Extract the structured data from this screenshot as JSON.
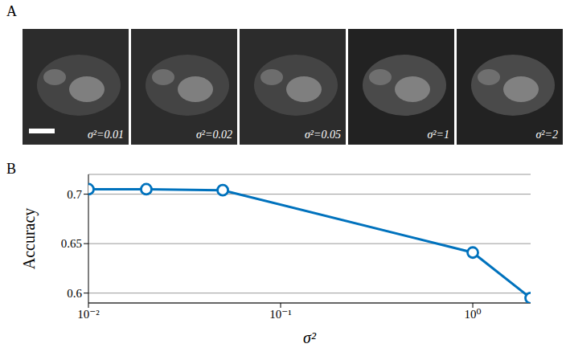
{
  "panel_a": {
    "label": "A",
    "images": [
      {
        "label": "σ²=0.01"
      },
      {
        "label": "σ²=0.02"
      },
      {
        "label": "σ²=0.05"
      },
      {
        "label": "σ²=1"
      },
      {
        "label": "σ²=2"
      }
    ]
  },
  "chart_data": {
    "type": "line",
    "panel_label": "B",
    "x_label": "σ²",
    "y_label": "Accuracy",
    "x": [
      0.01,
      0.02,
      0.05,
      1,
      2
    ],
    "values": [
      0.705,
      0.705,
      0.704,
      0.641,
      0.595
    ],
    "color": "#0072bd",
    "marker": "circle",
    "log": "x",
    "xlim": [
      0.01,
      2
    ],
    "xticks": [
      {
        "value": 0.01,
        "label": "10⁻²"
      },
      {
        "value": 0.1,
        "label": "10⁻¹"
      },
      {
        "value": 1,
        "label": "10⁰"
      }
    ],
    "ylim": [
      0.59,
      0.72
    ],
    "yticks": [
      0.6,
      0.65,
      0.7
    ],
    "grid": "y"
  }
}
